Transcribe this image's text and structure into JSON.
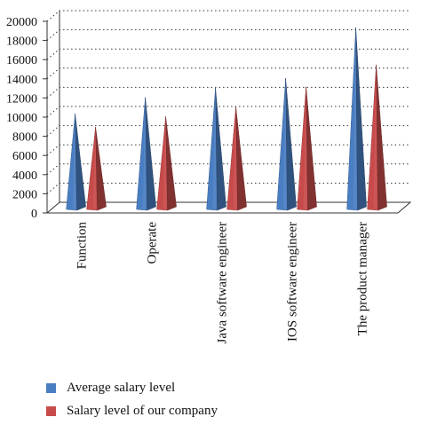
{
  "chart_data": {
    "type": "bar",
    "style": "3d-cone",
    "title": "",
    "xlabel": "",
    "ylabel": "",
    "ylim": [
      0,
      20000
    ],
    "yticks": [
      "0",
      "2000",
      "4000",
      "6000",
      "8000",
      "10000",
      "12000",
      "14000",
      "16000",
      "18000",
      "20000"
    ],
    "grid": true,
    "legend_position": "bottom-left",
    "categories": [
      "Function",
      "Operate",
      "Java software engineer",
      "IOS software engineer",
      "The product manager"
    ],
    "series": [
      {
        "name": "Average salary level",
        "color": "#4a7ec2",
        "values": [
          9800,
          11500,
          12500,
          13500,
          18800
        ]
      },
      {
        "name": "Salary level of our company",
        "color": "#c84b4b",
        "values": [
          8400,
          9500,
          10500,
          12600,
          14900
        ]
      }
    ]
  }
}
